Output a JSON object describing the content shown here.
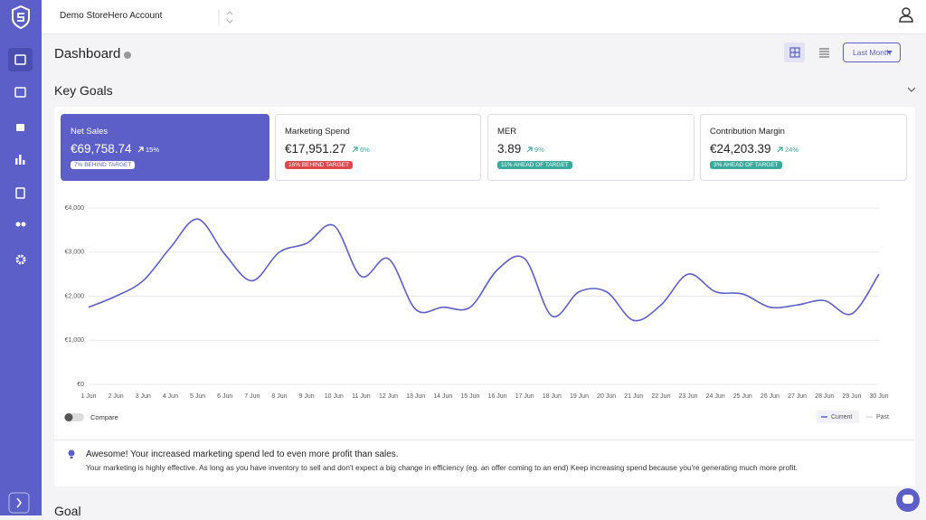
{
  "account": "Demo StoreHero Account",
  "page_title": "Dashboard",
  "period": "Last Month",
  "section_title": "Key Goals",
  "cards": [
    {
      "title": "Net Sales",
      "value": "€69,758.74",
      "change": "15%",
      "target": "7% BEHIND TARGET"
    },
    {
      "title": "Marketing Spend",
      "value": "€17,951.27",
      "change": "6%",
      "target": "16% BEHIND TARGET"
    },
    {
      "title": "MER",
      "value": "3.89",
      "change": "9%",
      "target": "11% AHEAD OF TARGET"
    },
    {
      "title": "Contribution Margin",
      "value": "€24,203.39",
      "change": "24%",
      "target": "3% AHEAD OF TARGET"
    }
  ],
  "chart_data": {
    "type": "line",
    "categories": [
      "1 Jun",
      "2 Jun",
      "3 Jun",
      "4 Jun",
      "5 Jun",
      "6 Jun",
      "7 Jun",
      "8 Jun",
      "9 Jun",
      "10 Jun",
      "11 Jun",
      "12 Jun",
      "13 Jun",
      "14 Jun",
      "15 Jun",
      "16 Jun",
      "17 Jun",
      "18 Jun",
      "19 Jun",
      "20 Jun",
      "21 Jun",
      "22 Jun",
      "23 Jun",
      "24 Jun",
      "25 Jun",
      "26 Jun",
      "27 Jun",
      "28 Jun",
      "29 Jun",
      "30 Jun"
    ],
    "series": [
      {
        "name": "Current",
        "color": "#5b5fc7",
        "values": [
          1750,
          2000,
          2350,
          3100,
          3750,
          2950,
          2350,
          3000,
          3200,
          3600,
          2450,
          2850,
          1700,
          1750,
          1750,
          2600,
          2850,
          1550,
          2100,
          2100,
          1450,
          1800,
          2500,
          2100,
          2050,
          1750,
          1800,
          1900,
          1600,
          2500
        ]
      },
      {
        "name": "Past",
        "color": "#dcdde3",
        "values": [
          null,
          null,
          null,
          null,
          null,
          null,
          null,
          null,
          null,
          null,
          null,
          null,
          null,
          null,
          null,
          null,
          null,
          null,
          null,
          null,
          null,
          null,
          null,
          null,
          null,
          null,
          null,
          null,
          null,
          null
        ]
      }
    ],
    "ylim": [
      0,
      4000
    ],
    "yticks": [
      {
        "value": 0,
        "label": "€0"
      },
      {
        "value": 1000,
        "label": "€1,000"
      },
      {
        "value": 2000,
        "label": "€2,000"
      },
      {
        "value": 3000,
        "label": "€3,000"
      },
      {
        "value": 4000,
        "label": "€4,000"
      }
    ],
    "grid": true
  },
  "compare_label": "Compare",
  "insight": {
    "title": "Awesome! Your increased marketing spend led to even more profit than sales.",
    "text": "Your marketing is highly effective. As long as you have inventory to sell and don't expect a big change in efficiency (eg. an offer coming to an end) Keep increasing spend because you're generating much more profit."
  },
  "next_section": "Goal"
}
